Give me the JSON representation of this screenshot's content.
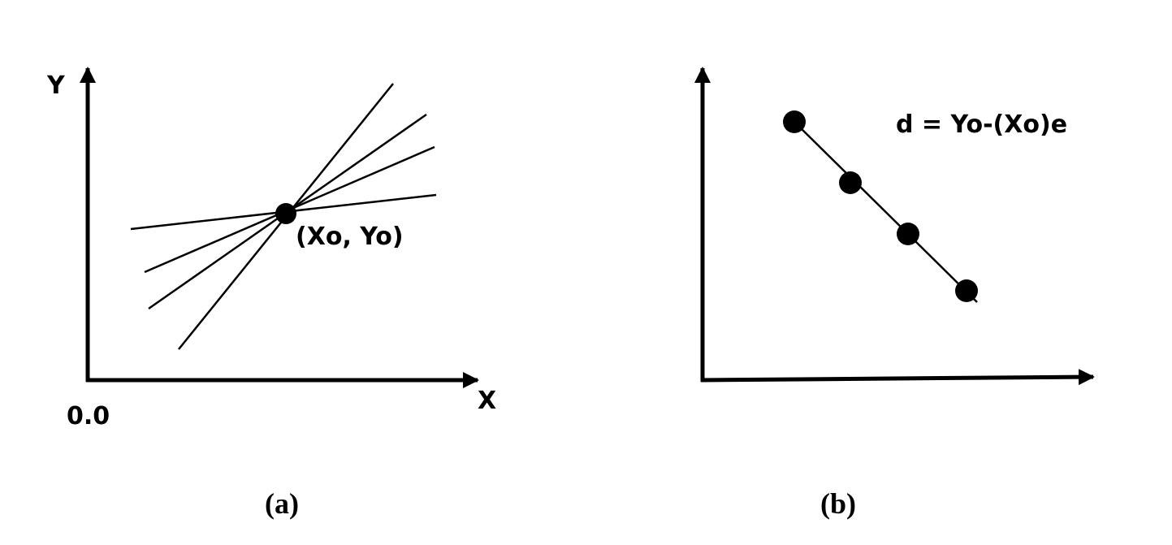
{
  "panels": [
    {
      "caption": "(a)",
      "y_axis_label": "Y",
      "x_axis_label": "X",
      "origin_label": "0.0",
      "point_label": "(Xo, Yo)"
    },
    {
      "caption": "(b)",
      "equation": "d = Yo-(Xo)e"
    }
  ]
}
